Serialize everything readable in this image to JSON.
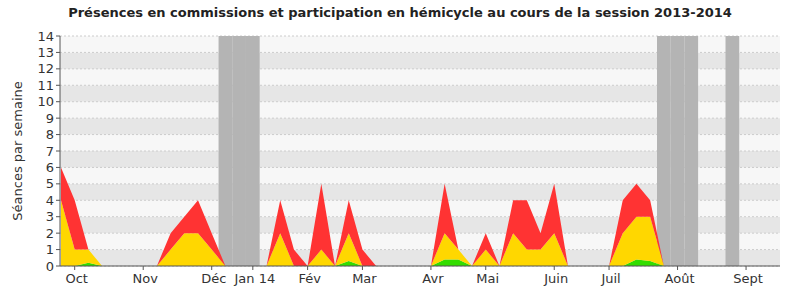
{
  "chart_data": {
    "type": "area",
    "title": "Présences en commissions et participation en hémicycle au cours de la session 2013-2014",
    "y_label": "Séances par semaine",
    "stacked": true,
    "grid": true,
    "categories": [
      null,
      "Oct",
      null,
      null,
      null,
      null,
      "Nov",
      null,
      null,
      null,
      null,
      "Déc",
      null,
      null,
      "Jan 14",
      null,
      null,
      null,
      "Fév",
      null,
      null,
      null,
      "Mar",
      null,
      null,
      null,
      null,
      "Avr",
      null,
      null,
      null,
      "Mai",
      null,
      null,
      null,
      null,
      "Juin",
      null,
      null,
      null,
      "Juil",
      null,
      null,
      null,
      null,
      "Août",
      null,
      null,
      null,
      null,
      "Sept",
      null
    ],
    "ylim": [
      0,
      14
    ],
    "yticks": [
      0,
      1,
      2,
      3,
      4,
      5,
      6,
      7,
      8,
      9,
      10,
      11,
      12,
      13,
      14
    ],
    "series": [
      {
        "color": "#33dd00",
        "values": [
          0,
          0,
          0.2,
          0,
          0,
          0,
          0,
          0,
          0,
          0,
          0,
          0,
          0,
          0,
          0,
          0,
          0,
          0,
          0,
          0,
          0,
          0.3,
          0,
          0,
          0,
          0,
          0,
          0,
          0.4,
          0.4,
          0,
          0,
          0,
          0,
          0,
          0,
          0,
          0,
          0,
          0,
          0,
          0,
          0.4,
          0.3,
          0,
          0,
          0,
          0,
          0,
          0,
          0,
          0
        ]
      },
      {
        "color": "#ffd700",
        "values": [
          4,
          1,
          0.8,
          0,
          0,
          0,
          0,
          0,
          1,
          2,
          2,
          1,
          0,
          0,
          0,
          0,
          2,
          0,
          0,
          1,
          0,
          1.7,
          0,
          0,
          0,
          0,
          0,
          0,
          1.6,
          0.6,
          0,
          1,
          0,
          2,
          1,
          1,
          2,
          0,
          0,
          0,
          0,
          2,
          2.6,
          2.7,
          0,
          0,
          0,
          0,
          0,
          0,
          0,
          0
        ]
      },
      {
        "color": "#ff3333",
        "values": [
          2,
          3,
          0,
          0,
          0,
          0,
          0,
          0,
          1,
          1,
          2,
          1,
          0,
          0,
          0,
          0,
          2,
          1,
          0,
          4,
          0,
          2,
          1,
          0,
          0,
          0,
          0,
          0,
          3,
          0,
          0,
          1,
          0,
          2,
          3,
          1,
          3,
          0,
          0,
          0,
          0,
          2,
          2,
          1,
          0,
          0,
          0,
          0,
          0,
          0,
          0,
          0
        ]
      },
      {
        "type": "bar",
        "color": "#b4b4b4",
        "values": [
          null,
          null,
          null,
          null,
          null,
          null,
          null,
          null,
          null,
          null,
          null,
          null,
          14,
          14,
          14,
          null,
          null,
          null,
          null,
          null,
          null,
          null,
          null,
          null,
          null,
          null,
          null,
          null,
          null,
          null,
          null,
          null,
          null,
          null,
          null,
          null,
          null,
          null,
          null,
          null,
          null,
          null,
          null,
          null,
          14,
          14,
          14,
          null,
          null,
          14,
          null,
          null
        ]
      }
    ]
  }
}
